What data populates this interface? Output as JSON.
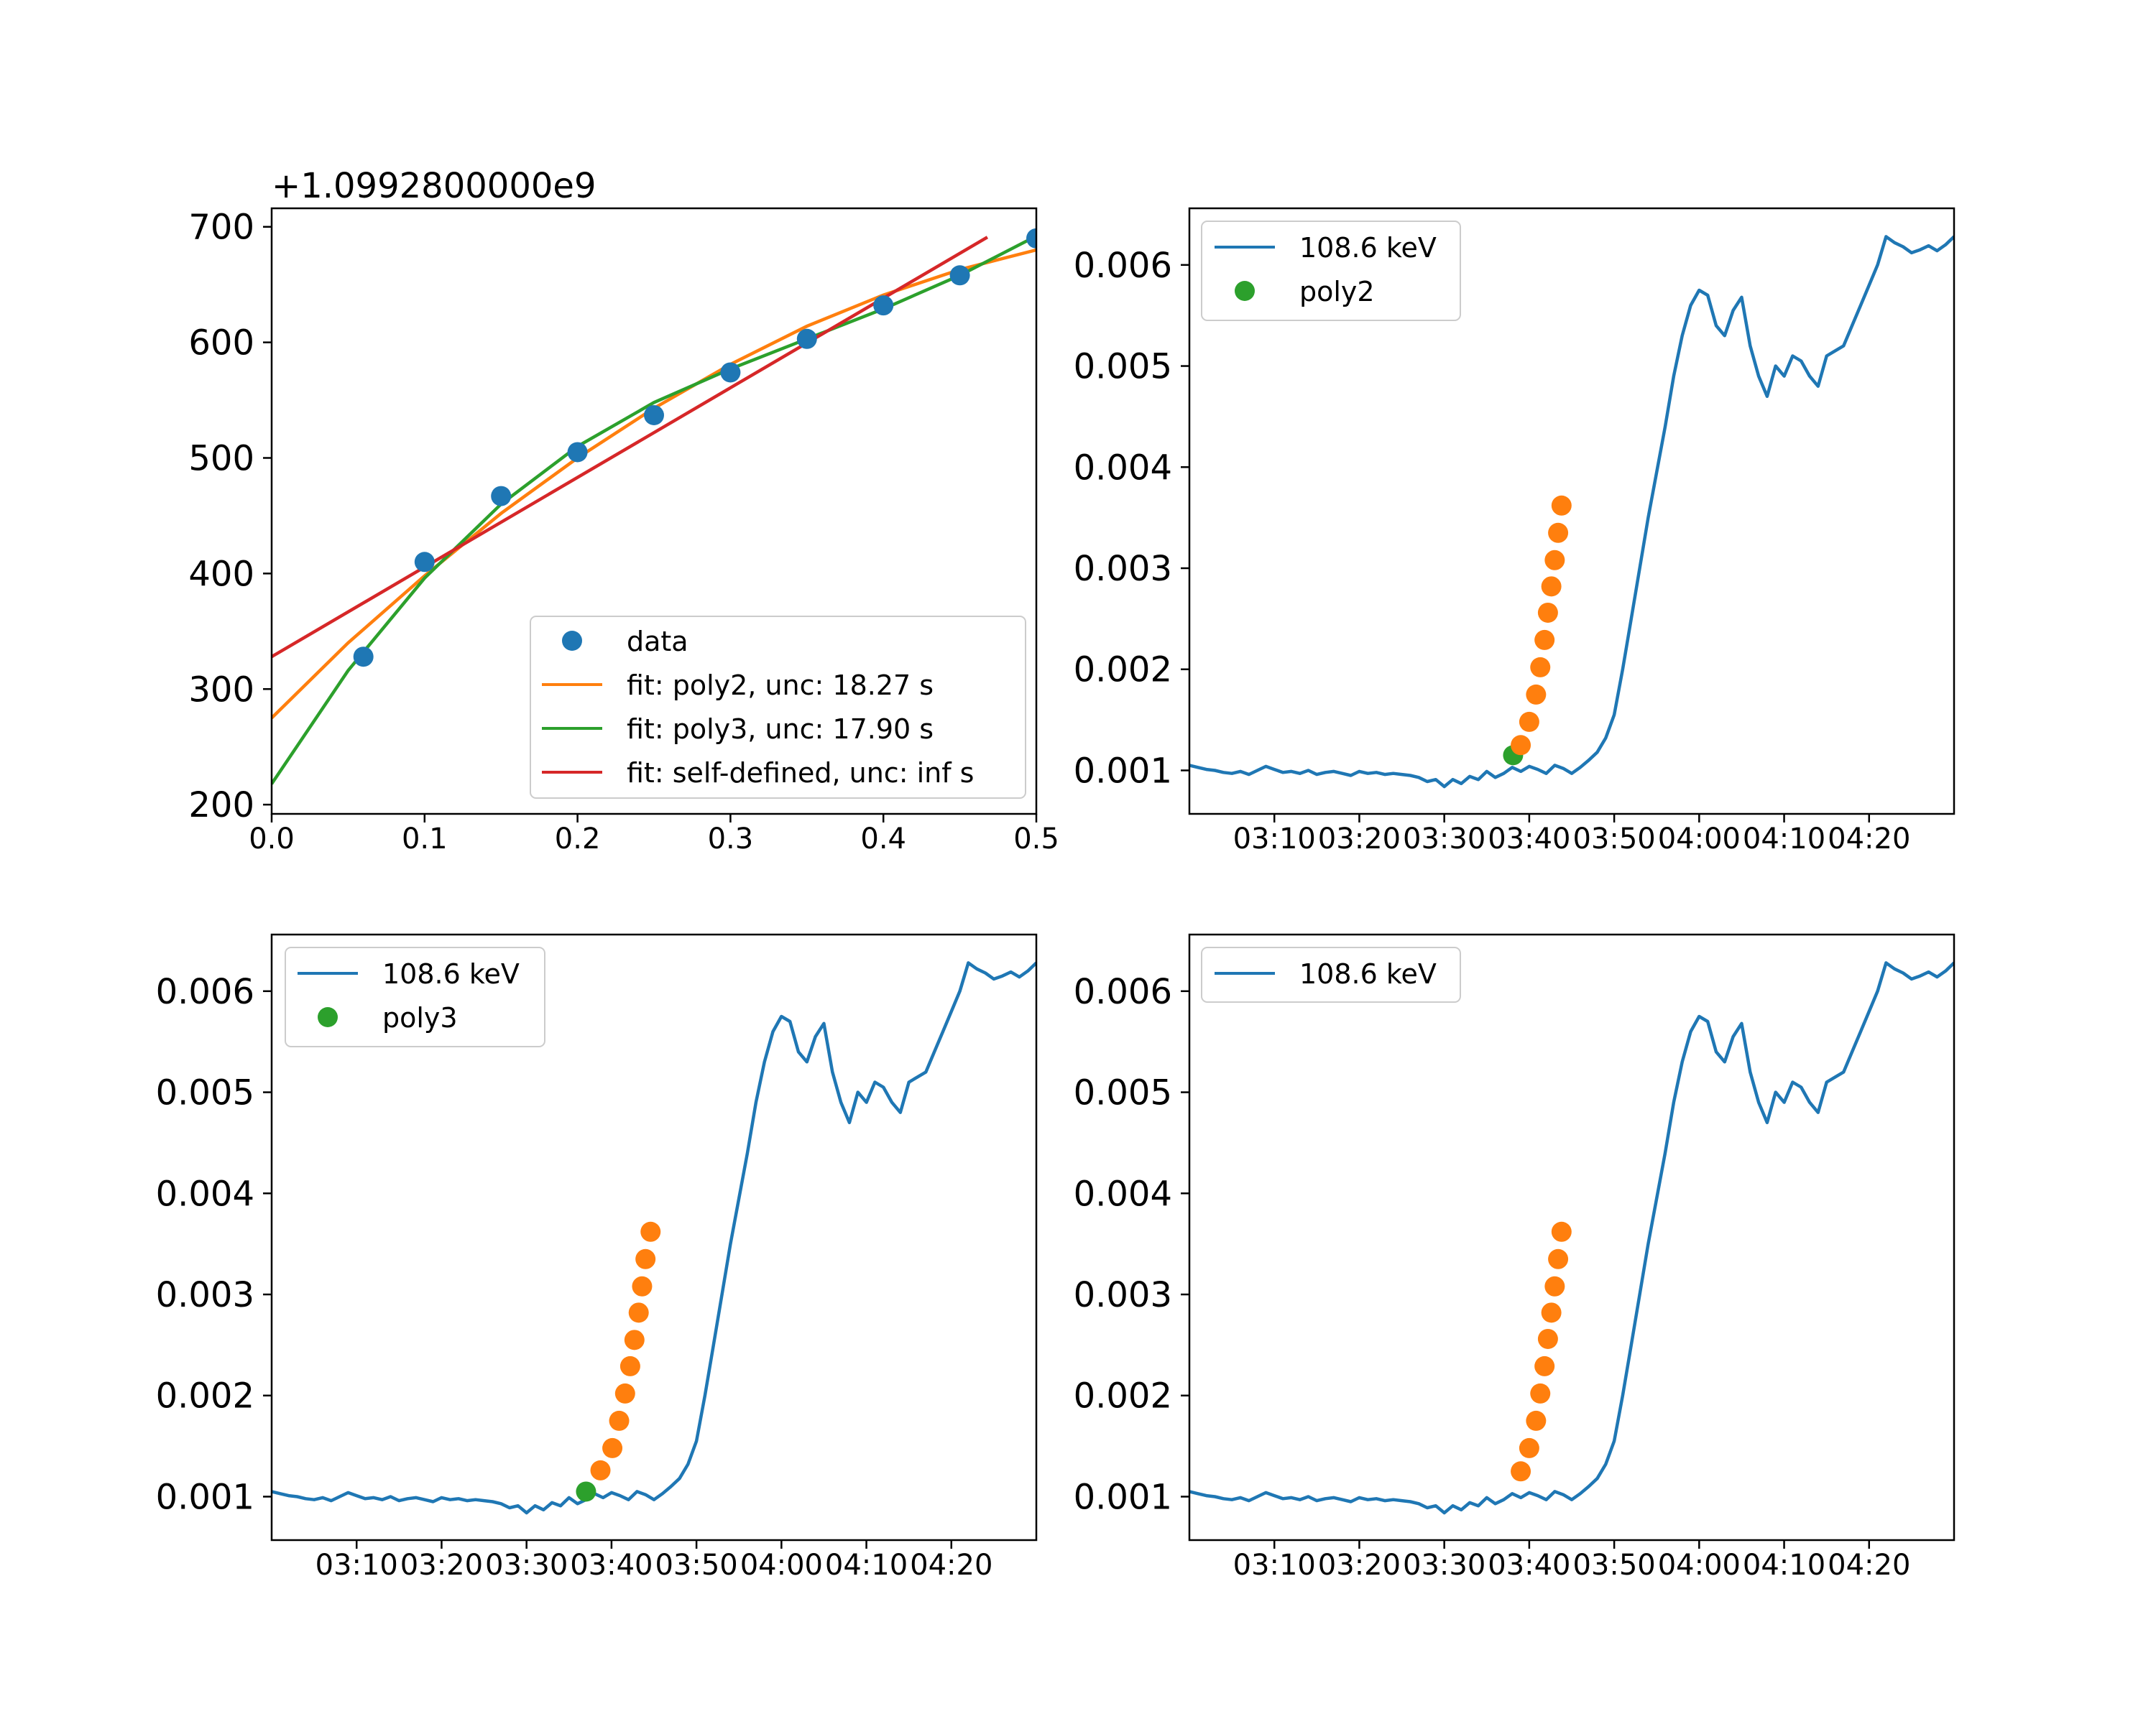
{
  "colors": {
    "blue": "#1f77b4",
    "orange": "#ff7f0e",
    "green": "#2ca02c",
    "red": "#d62728"
  },
  "chart_data": [
    {
      "id": "fit",
      "type": "line",
      "title": "",
      "xlabel": "",
      "ylabel": "",
      "offset_text": "+1.0992800000e9",
      "xlim": [
        0,
        0.5
      ],
      "ylim": [
        192,
        716
      ],
      "xticks": [
        0.0,
        0.1,
        0.2,
        0.3,
        0.4,
        0.5
      ],
      "xtick_labels": [
        "0.0",
        "0.1",
        "0.2",
        "0.3",
        "0.4",
        "0.5"
      ],
      "yticks": [
        200,
        300,
        400,
        500,
        600,
        700
      ],
      "ytick_labels": [
        "200",
        "300",
        "400",
        "500",
        "600",
        "700"
      ],
      "legend_position": "lower right",
      "series": [
        {
          "name": "data",
          "kind": "points",
          "color": "#1f77b4",
          "x": [
            0.06,
            0.1,
            0.15,
            0.2,
            0.25,
            0.3,
            0.35,
            0.4,
            0.45,
            0.5
          ],
          "y": [
            328,
            410,
            467,
            505,
            537,
            574,
            603,
            632,
            658,
            690
          ]
        },
        {
          "name": "fit: poly2, unc: 18.27 s",
          "kind": "line",
          "color": "#ff7f0e",
          "x": [
            0.0,
            0.05,
            0.1,
            0.15,
            0.2,
            0.25,
            0.3,
            0.35,
            0.4,
            0.45,
            0.5
          ],
          "y": [
            275,
            340,
            398,
            452,
            500,
            543,
            581,
            614,
            641,
            663,
            680
          ]
        },
        {
          "name": "fit: poly3, unc: 17.90 s",
          "kind": "line",
          "color": "#2ca02c",
          "x": [
            0.0,
            0.05,
            0.1,
            0.15,
            0.2,
            0.25,
            0.3,
            0.35,
            0.4,
            0.45,
            0.5
          ],
          "y": [
            218,
            316,
            396,
            460,
            510,
            548,
            577,
            603,
            629,
            658,
            692
          ]
        },
        {
          "name": "fit: self-defined, unc: inf s",
          "kind": "line",
          "color": "#d62728",
          "x": [
            0.0,
            0.468
          ],
          "y": [
            328,
            691
          ]
        }
      ]
    },
    {
      "id": "ts-poly2",
      "type": "line",
      "title": "",
      "xlabel": "",
      "ylabel": "",
      "xlim": [
        0,
        90
      ],
      "ylim": [
        0.00057,
        0.00656
      ],
      "xticks": [
        10,
        20,
        30,
        40,
        50,
        60,
        70,
        80
      ],
      "xtick_labels": [
        "03:10",
        "03:20",
        "03:30",
        "03:40",
        "03:50",
        "04:00",
        "04:10",
        "04:20"
      ],
      "yticks": [
        0.001,
        0.002,
        0.003,
        0.004,
        0.005,
        0.006
      ],
      "ytick_labels": [
        "0.001",
        "0.002",
        "0.003",
        "0.004",
        "0.005",
        "0.006"
      ],
      "legend_position": "upper left",
      "legend": [
        "108.6 keV",
        "poly2"
      ],
      "series": [
        {
          "name": "108.6 keV",
          "kind": "line",
          "color": "#1f77b4"
        },
        {
          "name": "poly2",
          "kind": "point",
          "color": "#2ca02c",
          "x": [
            38.1
          ],
          "y": [
            0.00115
          ]
        },
        {
          "name": "",
          "kind": "points",
          "color": "#ff7f0e",
          "x": [
            39.0,
            40.0,
            40.8,
            41.3,
            41.8,
            42.2,
            42.6,
            43.0,
            43.4,
            43.8
          ],
          "y": [
            0.00125,
            0.00148,
            0.00175,
            0.00202,
            0.00229,
            0.00256,
            0.00282,
            0.00308,
            0.00335,
            0.00362
          ]
        }
      ]
    },
    {
      "id": "ts-poly3",
      "type": "line",
      "title": "",
      "xlabel": "",
      "ylabel": "",
      "xlim": [
        0,
        90
      ],
      "ylim": [
        0.00057,
        0.00656
      ],
      "xticks": [
        10,
        20,
        30,
        40,
        50,
        60,
        70,
        80
      ],
      "xtick_labels": [
        "03:10",
        "03:20",
        "03:30",
        "03:40",
        "03:50",
        "04:00",
        "04:10",
        "04:20"
      ],
      "yticks": [
        0.001,
        0.002,
        0.003,
        0.004,
        0.005,
        0.006
      ],
      "ytick_labels": [
        "0.001",
        "0.002",
        "0.003",
        "0.004",
        "0.005",
        "0.006"
      ],
      "legend_position": "upper left",
      "legend": [
        "108.6 keV",
        "poly3"
      ],
      "series": [
        {
          "name": "108.6 keV",
          "kind": "line",
          "color": "#1f77b4"
        },
        {
          "name": "poly3",
          "kind": "point",
          "color": "#2ca02c",
          "x": [
            37.0
          ],
          "y": [
            0.00105
          ]
        },
        {
          "name": "",
          "kind": "points",
          "color": "#ff7f0e",
          "x": [
            38.7,
            40.1,
            40.9,
            41.6,
            42.2,
            42.7,
            43.2,
            43.6,
            44.0,
            44.6
          ],
          "y": [
            0.00126,
            0.00148,
            0.00175,
            0.00202,
            0.00229,
            0.00255,
            0.00282,
            0.00308,
            0.00335,
            0.00362
          ]
        }
      ]
    },
    {
      "id": "ts-plain",
      "type": "line",
      "title": "",
      "xlabel": "",
      "ylabel": "",
      "xlim": [
        0,
        90
      ],
      "ylim": [
        0.00057,
        0.00656
      ],
      "xticks": [
        10,
        20,
        30,
        40,
        50,
        60,
        70,
        80
      ],
      "xtick_labels": [
        "03:10",
        "03:20",
        "03:30",
        "03:40",
        "03:50",
        "04:00",
        "04:10",
        "04:20"
      ],
      "yticks": [
        0.001,
        0.002,
        0.003,
        0.004,
        0.005,
        0.006
      ],
      "ytick_labels": [
        "0.001",
        "0.002",
        "0.003",
        "0.004",
        "0.005",
        "0.006"
      ],
      "legend_position": "upper left",
      "legend": [
        "108.6 keV"
      ],
      "series": [
        {
          "name": "108.6 keV",
          "kind": "line",
          "color": "#1f77b4"
        },
        {
          "name": "",
          "kind": "points",
          "color": "#ff7f0e",
          "x": [
            39.0,
            40.0,
            40.8,
            41.3,
            41.8,
            42.2,
            42.6,
            43.0,
            43.4,
            43.8
          ],
          "y": [
            0.00125,
            0.00148,
            0.00175,
            0.00202,
            0.00229,
            0.00256,
            0.00282,
            0.00308,
            0.00335,
            0.00362
          ]
        }
      ]
    }
  ],
  "timeseries_108_6_keV": {
    "x": [
      0,
      1,
      2,
      3,
      4,
      5,
      6,
      7,
      8,
      9,
      10,
      11,
      12,
      13,
      14,
      15,
      16,
      17,
      18,
      19,
      20,
      21,
      22,
      23,
      24,
      25,
      26,
      27,
      28,
      29,
      30,
      31,
      32,
      33,
      34,
      35,
      36,
      37,
      38,
      39,
      40,
      41,
      42,
      43,
      44,
      45,
      46,
      47,
      48,
      49,
      50,
      51,
      52,
      53,
      54,
      55,
      56,
      57,
      58,
      59,
      60,
      61,
      62,
      63,
      64,
      65,
      66,
      67,
      68,
      69,
      70,
      71,
      72,
      73,
      74,
      75,
      76,
      77,
      78,
      79,
      80,
      81,
      82,
      83,
      84,
      85,
      86,
      87,
      88,
      89,
      90
    ],
    "y": [
      0.00105,
      0.00103,
      0.00101,
      0.001,
      0.00098,
      0.00097,
      0.00099,
      0.00096,
      0.001,
      0.00104,
      0.00101,
      0.00098,
      0.00099,
      0.00097,
      0.001,
      0.00096,
      0.00098,
      0.00099,
      0.00097,
      0.00095,
      0.00099,
      0.00097,
      0.00098,
      0.00096,
      0.00097,
      0.00096,
      0.00095,
      0.00093,
      0.00089,
      0.00091,
      0.00084,
      0.00091,
      0.00087,
      0.00094,
      0.00091,
      0.00099,
      0.00093,
      0.00097,
      0.00103,
      0.00099,
      0.00104,
      0.00101,
      0.00097,
      0.00105,
      0.00102,
      0.00097,
      0.00103,
      0.0011,
      0.00118,
      0.00132,
      0.00155,
      0.002,
      0.0025,
      0.003,
      0.0035,
      0.00395,
      0.0044,
      0.0049,
      0.0053,
      0.0056,
      0.00575,
      0.0057,
      0.0054,
      0.0053,
      0.00555,
      0.00568,
      0.0052,
      0.0049,
      0.0047,
      0.005,
      0.0049,
      0.0051,
      0.00505,
      0.0049,
      0.0048,
      0.0051,
      0.00515,
      0.0052,
      0.0054,
      0.0056,
      0.0058,
      0.006,
      0.00628,
      0.00622,
      0.00618,
      0.00612,
      0.00615,
      0.00619,
      0.00614,
      0.0062,
      0.00628
    ]
  },
  "legend_labels": {
    "fit_data": "data",
    "fit_poly2": "fit: poly2, unc: 18.27 s",
    "fit_poly3": "fit: poly3, unc: 17.90 s",
    "fit_self": "fit: self-defined, unc: inf s",
    "keV": "108.6 keV",
    "poly2": "poly2",
    "poly3": "poly3"
  }
}
